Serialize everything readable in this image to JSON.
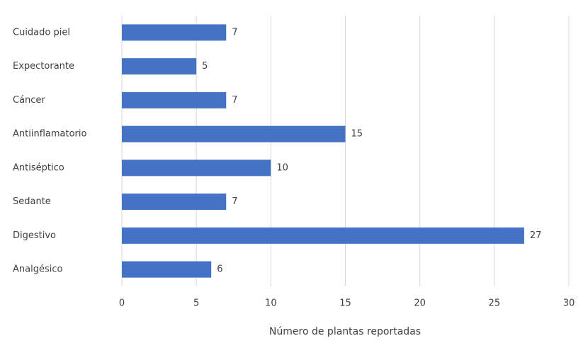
{
  "chart_data": {
    "type": "bar",
    "orientation": "horizontal",
    "categories": [
      "Cuidado piel",
      "Expectorante",
      "Cáncer",
      "Antiinflamatorio",
      "Antiséptico",
      "Sedante",
      "Digestivo",
      "Analgésico"
    ],
    "values": [
      7,
      5,
      7,
      15,
      10,
      7,
      27,
      6
    ],
    "color": "#4472c4",
    "x_label": "Número de plantas reportadas",
    "xlim": [
      0,
      30
    ],
    "xticks": [
      0,
      5,
      10,
      15,
      20,
      25,
      30
    ],
    "grid": true,
    "data_labels": true
  }
}
